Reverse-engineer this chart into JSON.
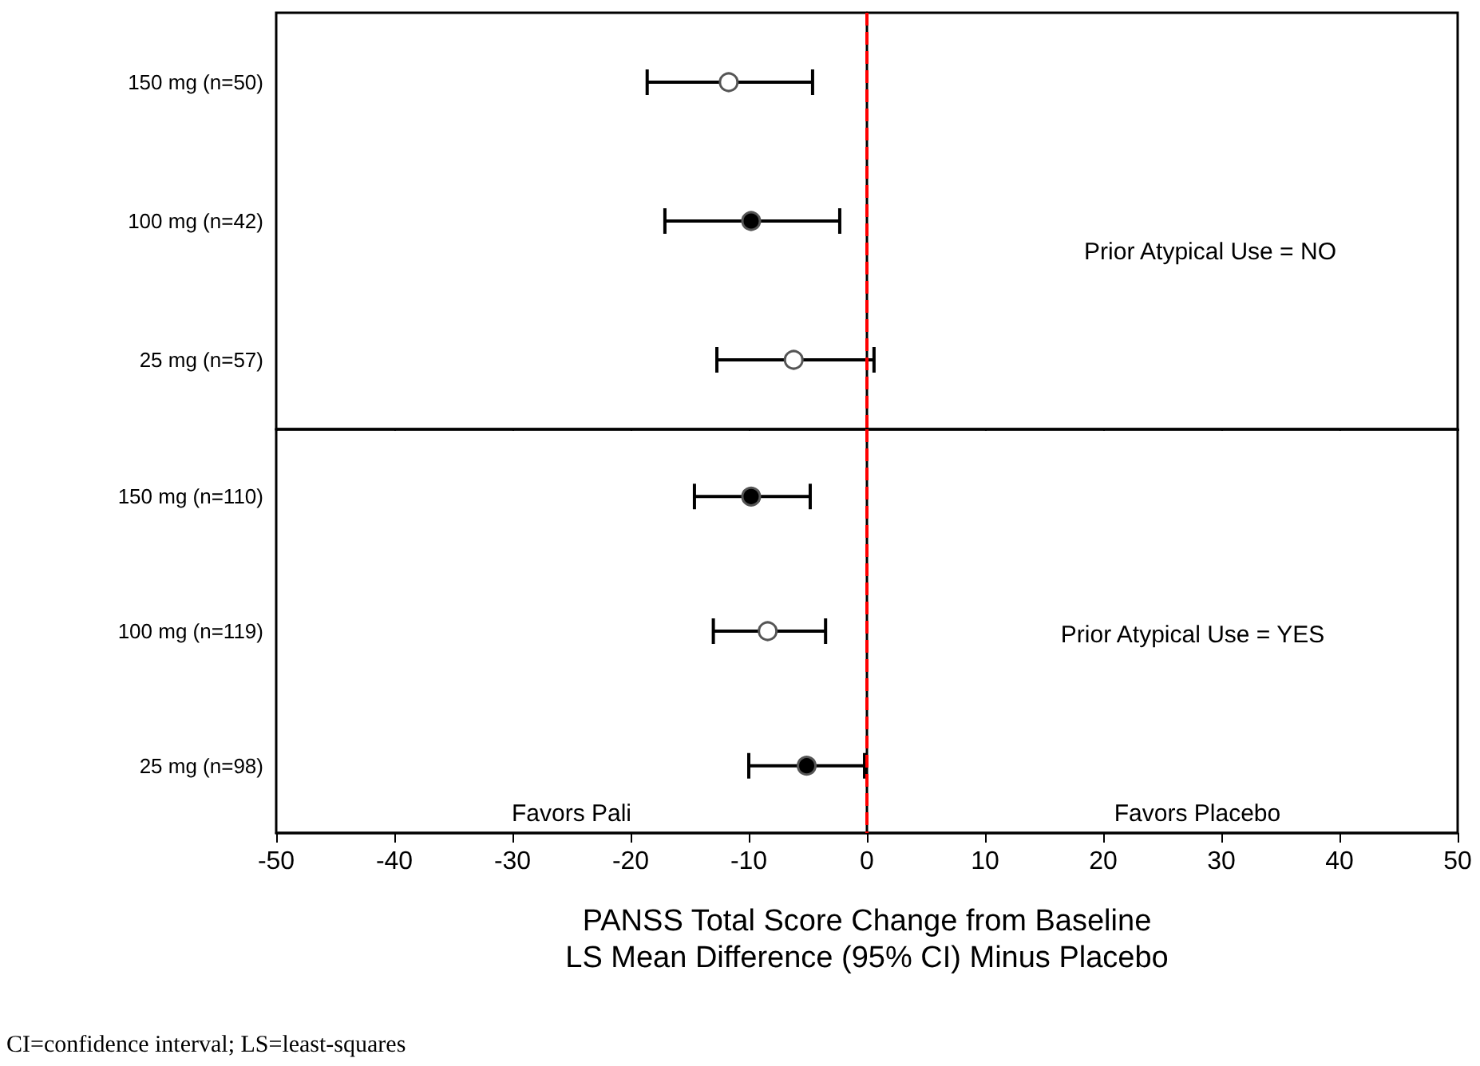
{
  "chart_data": [
    {
      "type": "scatter",
      "orientation": "horizontal",
      "categories": [
        "150 mg (n=50)",
        "100 mg (n=42)",
        "25 mg (n=57)"
      ],
      "marker": "circle",
      "xlim": [
        -50,
        50
      ],
      "xticks": [
        -50,
        -40,
        -30,
        -20,
        -10,
        0,
        10,
        20,
        30,
        40,
        50
      ],
      "tick_labels": "y",
      "series": [
        {
          "color": "#000000",
          "colors": [
            "#ffffff",
            "#000000",
            "#ffffff"
          ],
          "values": [
            -11.7,
            -9.8,
            -6.2
          ],
          "errors": [
            [
              -18.6,
              -4.6
            ],
            [
              -17.1,
              -2.3
            ],
            [
              -12.7,
              0.6
            ]
          ]
        }
      ],
      "ref_lines": [
        {
          "axis": "x",
          "value": 0,
          "color": "#ff0000",
          "line_style": "dashed"
        }
      ],
      "annotations": [
        "Prior Atypical Use = NO"
      ]
    },
    {
      "type": "scatter",
      "orientation": "horizontal",
      "categories": [
        "150 mg (n=110)",
        "100 mg (n=119)",
        "25 mg (n=98)"
      ],
      "marker": "circle",
      "xlim": [
        -50,
        50
      ],
      "xticks": [
        -50,
        -40,
        -30,
        -20,
        -10,
        0,
        10,
        20,
        30,
        40,
        50
      ],
      "xlabel": "PANSS Total Score Change from Baseline\nLS Mean Difference (95% CI) Minus Placebo",
      "series": [
        {
          "color": "#000000",
          "colors": [
            "#000000",
            "#ffffff",
            "#000000"
          ],
          "values": [
            -9.8,
            -8.4,
            -5.1
          ],
          "errors": [
            [
              -14.6,
              -4.8
            ],
            [
              -13.0,
              -3.5
            ],
            [
              -10.0,
              -0.2
            ]
          ]
        }
      ],
      "ref_lines": [
        {
          "axis": "x",
          "value": 0,
          "color": "#ff0000",
          "line_style": "dashed"
        }
      ],
      "annotations": [
        "Prior Atypical Use = YES",
        "Favors Pali",
        "Favors Placebo",
        "CI=confidence interval; LS=least-squares"
      ]
    }
  ]
}
